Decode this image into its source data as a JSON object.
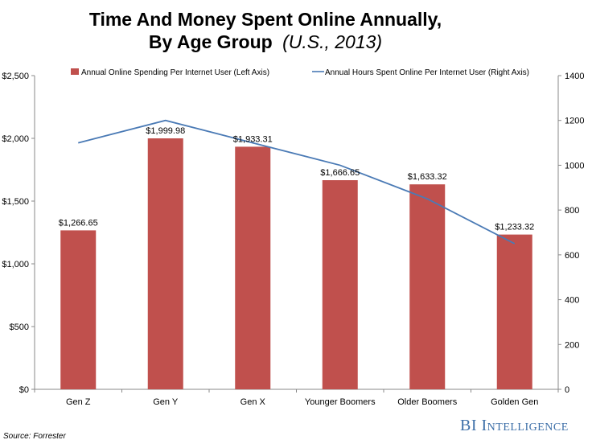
{
  "colors": {
    "bar": "#c0504d",
    "line": "#4a7ab5",
    "axis": "#888888",
    "brand": "#3d6fa8"
  },
  "footer": {
    "source": "Source: Forrester",
    "brand_bi": "BI",
    "brand_intel": "Intelligence"
  },
  "chart_data": {
    "type": "bar",
    "title_main": "Time And Money Spent Online Annually,",
    "title_line2": "By Age Group",
    "title_italic": "(U.S., 2013)",
    "categories": [
      "Gen Z",
      "Gen Y",
      "Gen X",
      "Younger Boomers",
      "Older Boomers",
      "Golden Gen"
    ],
    "series": [
      {
        "name": "Annual Online Spending Per Internet User (Left Axis)",
        "type": "bar",
        "axis": "left",
        "values": [
          1266.65,
          1999.98,
          1933.31,
          1666.65,
          1633.32,
          1233.32
        ],
        "labels": [
          "$1,266.65",
          "$1,999.98",
          "$1,933.31",
          "$1,666.65",
          "$1,633.32",
          "$1,233.32"
        ]
      },
      {
        "name": "Annual Hours Spent Online Per Internet User (Right Axis)",
        "type": "line",
        "axis": "right",
        "values": [
          1100,
          1200,
          1100,
          1000,
          850,
          650
        ]
      }
    ],
    "left_axis": {
      "min": 0,
      "max": 2500,
      "ticks": [
        0,
        500,
        1000,
        1500,
        2000,
        2500
      ],
      "tick_labels": [
        "$0",
        "$500",
        "$1,000",
        "$1,500",
        "$2,000",
        "$2,500"
      ]
    },
    "right_axis": {
      "min": 0,
      "max": 1400,
      "ticks": [
        0,
        200,
        400,
        600,
        800,
        1000,
        1200,
        1400
      ],
      "tick_labels": [
        "0",
        "200",
        "400",
        "600",
        "800",
        "1000",
        "1200",
        "1400"
      ]
    },
    "grid": false,
    "legend_position": "top"
  }
}
